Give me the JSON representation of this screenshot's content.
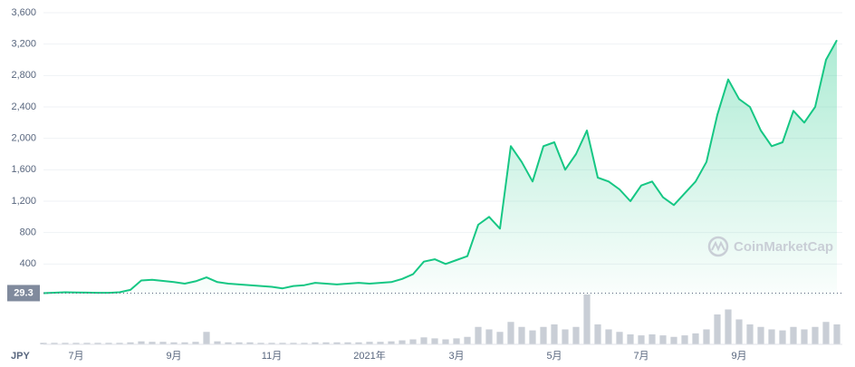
{
  "chart_data": {
    "type": "line",
    "categories": [
      null,
      null,
      null,
      "7月",
      null,
      null,
      null,
      null,
      null,
      null,
      null,
      null,
      "9月",
      null,
      null,
      null,
      null,
      null,
      null,
      null,
      null,
      "11月",
      null,
      null,
      null,
      null,
      null,
      null,
      null,
      null,
      "2021年",
      null,
      null,
      null,
      null,
      null,
      null,
      null,
      "3月",
      null,
      null,
      null,
      null,
      null,
      null,
      null,
      null,
      "5月",
      null,
      null,
      null,
      null,
      null,
      null,
      null,
      "7月",
      null,
      null,
      null,
      null,
      null,
      null,
      null,
      null,
      "9月",
      null,
      null,
      null,
      null,
      null,
      null,
      null,
      null,
      null
    ],
    "series": [
      {
        "color": "#16c784",
        "values": [
          29,
          35,
          40,
          38,
          36,
          33,
          34,
          40,
          70,
          190,
          200,
          185,
          170,
          150,
          180,
          230,
          170,
          150,
          140,
          130,
          120,
          110,
          90,
          120,
          130,
          160,
          150,
          140,
          150,
          160,
          150,
          160,
          170,
          210,
          270,
          430,
          460,
          400,
          450,
          500,
          900,
          1000,
          850,
          1900,
          1700,
          1450,
          1900,
          1950,
          1600,
          1800,
          2100,
          1500,
          1450,
          1350,
          1200,
          1400,
          1450,
          1250,
          1150,
          1300,
          1450,
          1700,
          2300,
          2750,
          2500,
          2400,
          2100,
          1900,
          1950,
          2350,
          2200,
          2400,
          3000,
          3250
        ]
      }
    ],
    "volume": {
      "color": "#c9ced6",
      "ylim": [
        0,
        100
      ],
      "values": [
        3,
        3,
        3,
        3,
        3,
        3,
        3,
        3,
        4,
        6,
        5,
        5,
        4,
        4,
        5,
        25,
        6,
        4,
        4,
        4,
        3,
        3,
        3,
        3,
        3,
        4,
        4,
        4,
        4,
        4,
        5,
        5,
        6,
        8,
        10,
        14,
        12,
        10,
        12,
        15,
        35,
        30,
        25,
        45,
        35,
        28,
        35,
        40,
        30,
        35,
        100,
        40,
        30,
        25,
        20,
        18,
        20,
        18,
        15,
        18,
        22,
        30,
        60,
        70,
        50,
        40,
        35,
        30,
        28,
        35,
        30,
        35,
        45,
        40
      ]
    },
    "ylim": [
      0,
      3600
    ],
    "yticks": [
      {
        "value": 400,
        "label": "400"
      },
      {
        "value": 800,
        "label": "800"
      },
      {
        "value": 1200,
        "label": "1,200"
      },
      {
        "value": 1600,
        "label": "1,600"
      },
      {
        "value": 2000,
        "label": "2,000"
      },
      {
        "value": 2400,
        "label": "2,400"
      },
      {
        "value": 2800,
        "label": "2,800"
      },
      {
        "value": 3200,
        "label": "3,200"
      },
      {
        "value": 3600,
        "label": "3,600"
      }
    ],
    "grid": true,
    "start_price": 29.3,
    "currency": "JPY",
    "watermark": "CoinMarketCap"
  }
}
